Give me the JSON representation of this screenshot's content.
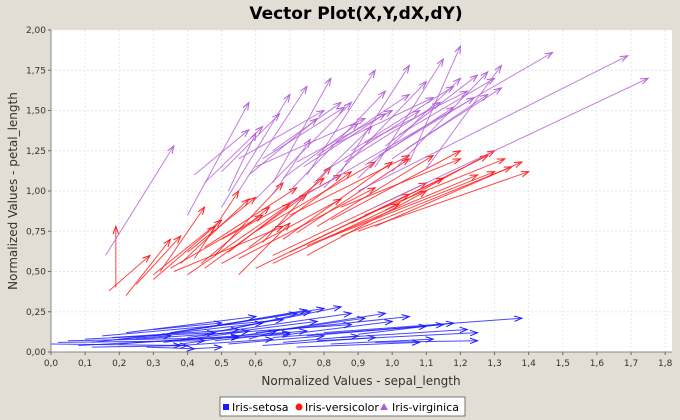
{
  "chart_data": {
    "type": "vector",
    "title": "Vector Plot(X,Y,dX,dY)",
    "xlabel": "Normalized Values - sepal_length",
    "ylabel": "Normalized Values - petal_length",
    "xlim": [
      0,
      1.82
    ],
    "ylim": [
      0,
      2.0
    ],
    "xticks": [
      "0,0",
      "0,1",
      "0,2",
      "0,3",
      "0,4",
      "0,5",
      "0,6",
      "0,7",
      "0,8",
      "0,9",
      "1,0",
      "1,1",
      "1,2",
      "1,3",
      "1,4",
      "1,5",
      "1,6",
      "1,7",
      "1,8"
    ],
    "yticks": [
      "0,00",
      "0,25",
      "0,50",
      "0,75",
      "1,00",
      "1,25",
      "1,50",
      "1,75",
      "2,00"
    ],
    "grid": true,
    "legend_position": "bottom",
    "series": [
      {
        "name": "Iris-setosa",
        "color": "#1a1aff",
        "marker": "square",
        "vectors": [
          [
            0.0,
            0.05,
            0.38,
            0.04
          ],
          [
            0.02,
            0.06,
            0.45,
            0.07
          ],
          [
            0.05,
            0.07,
            0.55,
            0.09
          ],
          [
            0.08,
            0.04,
            0.7,
            0.11
          ],
          [
            0.1,
            0.08,
            0.48,
            0.12
          ],
          [
            0.12,
            0.06,
            0.62,
            0.18
          ],
          [
            0.15,
            0.1,
            0.68,
            0.2
          ],
          [
            0.18,
            0.09,
            0.55,
            0.14
          ],
          [
            0.2,
            0.05,
            0.75,
            0.13
          ],
          [
            0.22,
            0.12,
            0.6,
            0.22
          ],
          [
            0.25,
            0.08,
            0.88,
            0.17
          ],
          [
            0.28,
            0.03,
            0.42,
            0.02
          ],
          [
            0.3,
            0.1,
            0.72,
            0.24
          ],
          [
            0.33,
            0.06,
            0.58,
            0.13
          ],
          [
            0.35,
            0.12,
            0.8,
            0.27
          ],
          [
            0.38,
            0.04,
            0.65,
            0.08
          ],
          [
            0.4,
            0.09,
            0.78,
            0.19
          ],
          [
            0.42,
            0.02,
            0.5,
            0.03
          ],
          [
            0.45,
            0.11,
            0.85,
            0.28
          ],
          [
            0.48,
            0.07,
            0.7,
            0.12
          ],
          [
            0.5,
            0.13,
            0.76,
            0.25
          ],
          [
            0.52,
            0.05,
            0.8,
            0.1
          ],
          [
            0.55,
            0.1,
            0.92,
            0.21
          ],
          [
            0.58,
            0.08,
            0.66,
            0.13
          ],
          [
            0.6,
            0.12,
            1.05,
            0.22
          ],
          [
            0.62,
            0.04,
            0.95,
            0.09
          ],
          [
            0.65,
            0.09,
            1.1,
            0.16
          ],
          [
            0.68,
            0.06,
            0.9,
            0.1
          ],
          [
            0.7,
            0.11,
            1.0,
            0.19
          ],
          [
            0.72,
            0.03,
            1.08,
            0.06
          ],
          [
            0.75,
            0.1,
            1.15,
            0.17
          ],
          [
            0.78,
            0.07,
            1.25,
            0.12
          ],
          [
            0.8,
            0.12,
            1.38,
            0.21
          ],
          [
            0.82,
            0.05,
            1.12,
            0.08
          ],
          [
            0.85,
            0.09,
            1.22,
            0.14
          ],
          [
            0.9,
            0.11,
            1.18,
            0.18
          ],
          [
            0.95,
            0.06,
            1.25,
            0.07
          ],
          [
            0.35,
            0.04,
            0.55,
            0.1
          ],
          [
            0.45,
            0.15,
            0.75,
            0.26
          ],
          [
            0.55,
            0.14,
            0.88,
            0.24
          ],
          [
            0.2,
            0.08,
            0.35,
            0.1
          ],
          [
            0.12,
            0.03,
            0.4,
            0.04
          ],
          [
            0.3,
            0.14,
            0.5,
            0.18
          ],
          [
            0.65,
            0.13,
            0.98,
            0.24
          ]
        ]
      },
      {
        "name": "Iris-versicolor",
        "color": "#ff1a1a",
        "marker": "circle",
        "vectors": [
          [
            0.19,
            0.4,
            0.19,
            0.78
          ],
          [
            0.17,
            0.38,
            0.29,
            0.6
          ],
          [
            0.22,
            0.35,
            0.35,
            0.7
          ],
          [
            0.25,
            0.42,
            0.38,
            0.72
          ],
          [
            0.3,
            0.48,
            0.5,
            0.82
          ],
          [
            0.32,
            0.5,
            0.45,
            0.9
          ],
          [
            0.35,
            0.52,
            0.62,
            0.85
          ],
          [
            0.38,
            0.55,
            0.58,
            0.95
          ],
          [
            0.4,
            0.48,
            0.7,
            0.92
          ],
          [
            0.42,
            0.58,
            0.55,
            1.0
          ],
          [
            0.45,
            0.52,
            0.75,
            0.98
          ],
          [
            0.48,
            0.6,
            0.68,
            1.05
          ],
          [
            0.5,
            0.55,
            0.85,
            0.95
          ],
          [
            0.52,
            0.62,
            0.8,
            1.08
          ],
          [
            0.55,
            0.58,
            0.95,
            1.02
          ],
          [
            0.58,
            0.65,
            0.88,
            1.12
          ],
          [
            0.6,
            0.52,
            1.05,
            0.98
          ],
          [
            0.62,
            0.68,
            0.82,
            1.15
          ],
          [
            0.65,
            0.6,
            1.1,
            1.05
          ],
          [
            0.68,
            0.7,
            1.0,
            1.18
          ],
          [
            0.7,
            0.62,
            1.15,
            1.08
          ],
          [
            0.72,
            0.74,
            1.05,
            1.2
          ],
          [
            0.75,
            0.66,
            1.25,
            1.1
          ],
          [
            0.78,
            0.78,
            1.12,
            1.22
          ],
          [
            0.8,
            0.7,
            1.3,
            1.12
          ],
          [
            0.82,
            0.82,
            1.2,
            1.25
          ],
          [
            0.85,
            0.72,
            1.35,
            1.15
          ],
          [
            0.88,
            0.8,
            1.28,
            1.22
          ],
          [
            0.9,
            0.75,
            1.4,
            1.12
          ],
          [
            0.92,
            0.85,
            1.33,
            1.2
          ],
          [
            0.95,
            0.78,
            1.38,
            1.18
          ],
          [
            0.98,
            0.88,
            1.3,
            1.25
          ],
          [
            0.36,
            0.5,
            0.68,
            0.78
          ],
          [
            0.44,
            0.55,
            0.64,
            0.9
          ],
          [
            0.3,
            0.45,
            0.48,
            0.78
          ],
          [
            0.4,
            0.62,
            0.6,
            0.96
          ],
          [
            0.55,
            0.48,
            0.7,
            0.8
          ],
          [
            0.65,
            0.55,
            1.02,
            0.92
          ],
          [
            0.75,
            0.6,
            1.1,
            1.0
          ],
          [
            0.6,
            0.75,
            0.95,
            1.18
          ],
          [
            0.5,
            0.7,
            0.85,
            1.1
          ],
          [
            0.7,
            0.85,
            1.05,
            1.22
          ],
          [
            0.45,
            0.65,
            0.72,
            1.02
          ],
          [
            0.85,
            0.9,
            1.2,
            1.2
          ]
        ]
      },
      {
        "name": "Iris-virginica",
        "color": "#b25fd4",
        "marker": "triangle",
        "vectors": [
          [
            0.16,
            0.6,
            0.36,
            1.28
          ],
          [
            0.4,
            0.85,
            0.58,
            1.55
          ],
          [
            0.5,
            0.9,
            0.7,
            1.6
          ],
          [
            0.55,
            1.0,
            0.75,
            1.65
          ],
          [
            0.6,
            0.95,
            0.88,
            1.55
          ],
          [
            0.65,
            1.05,
            0.82,
            1.7
          ],
          [
            0.7,
            1.0,
            0.98,
            1.62
          ],
          [
            0.75,
            1.1,
            0.95,
            1.75
          ],
          [
            0.8,
            1.02,
            1.1,
            1.68
          ],
          [
            0.85,
            1.12,
            1.05,
            1.78
          ],
          [
            0.9,
            1.08,
            1.2,
            1.7
          ],
          [
            0.95,
            1.15,
            1.15,
            1.82
          ],
          [
            1.0,
            1.12,
            1.28,
            1.74
          ],
          [
            1.05,
            1.18,
            1.2,
            1.9
          ],
          [
            1.1,
            1.14,
            1.32,
            1.78
          ],
          [
            0.7,
            0.92,
            1.47,
            1.86
          ],
          [
            0.9,
            1.0,
            1.69,
            1.84
          ],
          [
            0.95,
            0.9,
            1.75,
            1.7
          ],
          [
            0.55,
            1.2,
            0.8,
            1.5
          ],
          [
            0.6,
            1.15,
            0.92,
            1.45
          ],
          [
            0.65,
            1.25,
            0.85,
            1.55
          ],
          [
            0.72,
            1.18,
            1.0,
            1.5
          ],
          [
            0.78,
            1.22,
            1.05,
            1.6
          ],
          [
            0.82,
            1.28,
            1.12,
            1.58
          ],
          [
            0.88,
            1.25,
            1.18,
            1.65
          ],
          [
            0.92,
            1.3,
            1.22,
            1.62
          ],
          [
            0.98,
            1.28,
            1.25,
            1.72
          ],
          [
            1.02,
            1.35,
            1.3,
            1.7
          ],
          [
            0.45,
            1.05,
            0.62,
            1.4
          ],
          [
            0.5,
            1.12,
            0.67,
            1.48
          ],
          [
            0.58,
            1.1,
            0.78,
            1.45
          ],
          [
            0.62,
            1.2,
            0.86,
            1.52
          ],
          [
            0.68,
            1.08,
            0.9,
            1.42
          ],
          [
            0.74,
            1.15,
            0.98,
            1.48
          ],
          [
            0.8,
            1.12,
            1.08,
            1.5
          ],
          [
            0.86,
            1.18,
            1.14,
            1.55
          ],
          [
            0.92,
            1.16,
            1.18,
            1.52
          ],
          [
            0.96,
            1.22,
            1.24,
            1.58
          ],
          [
            1.0,
            1.2,
            1.28,
            1.6
          ],
          [
            1.04,
            1.26,
            1.32,
            1.64
          ],
          [
            0.42,
            1.1,
            0.58,
            1.38
          ],
          [
            0.52,
            1.0,
            0.6,
            1.36
          ],
          [
            0.65,
            0.98,
            0.76,
            1.32
          ],
          [
            0.77,
            1.05,
            0.94,
            1.4
          ]
        ]
      }
    ]
  }
}
